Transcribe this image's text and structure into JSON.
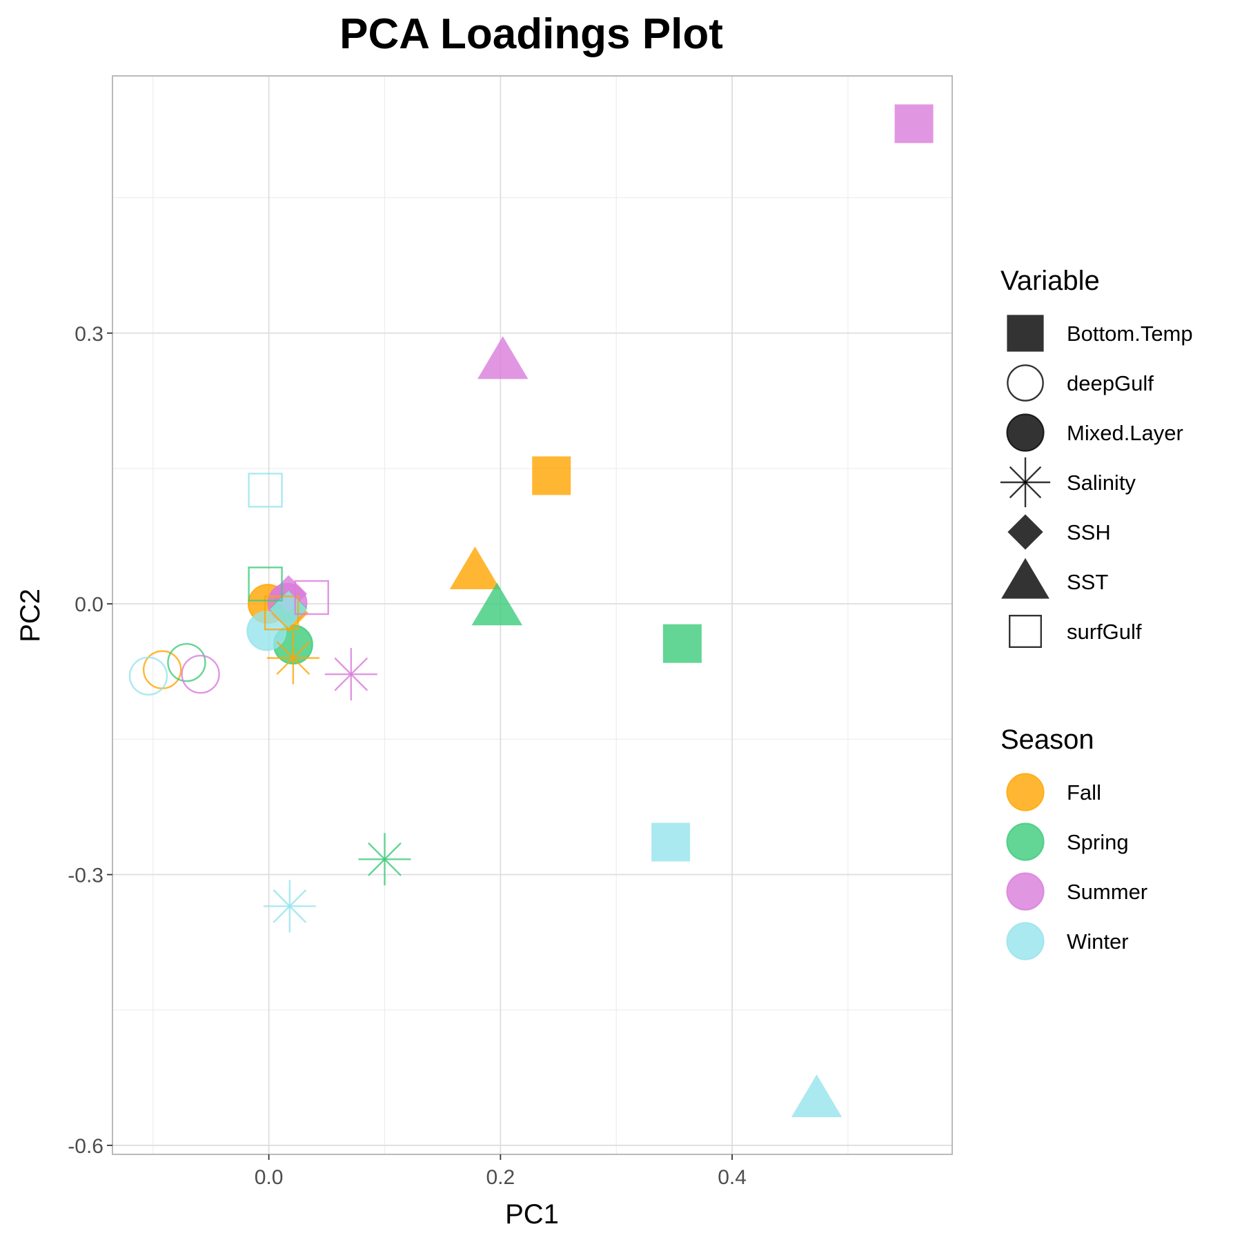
{
  "chart_data": {
    "type": "scatter",
    "title": "PCA Loadings Plot",
    "xlabel": "PC1",
    "ylabel": "PC2",
    "xlim": [
      -0.135,
      0.59
    ],
    "ylim": [
      -0.61,
      0.585
    ],
    "x_ticks": [
      0.0,
      0.2,
      0.4
    ],
    "x_tick_labels": [
      "0.0",
      "0.2",
      "0.4"
    ],
    "y_ticks": [
      0.3,
      0.0,
      -0.3,
      -0.6
    ],
    "y_tick_labels": [
      "0.3",
      "0.0",
      "-0.3",
      "-0.6"
    ],
    "grid": true,
    "legend_placement": "right",
    "legends": {
      "variable": {
        "title": "Variable",
        "entries": [
          {
            "label": "Bottom.Temp",
            "shape": "square-filled"
          },
          {
            "label": "deepGulf",
            "shape": "circle-open"
          },
          {
            "label": "Mixed.Layer",
            "shape": "circle-filled"
          },
          {
            "label": "Salinity",
            "shape": "asterisk"
          },
          {
            "label": "SSH",
            "shape": "diamond-filled"
          },
          {
            "label": "SST",
            "shape": "triangle-filled"
          },
          {
            "label": "surfGulf",
            "shape": "square-open"
          }
        ]
      },
      "season": {
        "title": "Season",
        "entries": [
          {
            "label": "Fall",
            "color": "#FFA500"
          },
          {
            "label": "Spring",
            "color": "#3CCB7A"
          },
          {
            "label": "Summer",
            "color": "#D97CDB"
          },
          {
            "label": "Winter",
            "color": "#96E4EC"
          }
        ]
      }
    },
    "points": [
      {
        "variable": "Bottom.Temp",
        "season": "Fall",
        "x": 0.244,
        "y": 0.142
      },
      {
        "variable": "Bottom.Temp",
        "season": "Spring",
        "x": 0.357,
        "y": -0.044
      },
      {
        "variable": "Bottom.Temp",
        "season": "Summer",
        "x": 0.557,
        "y": 0.532
      },
      {
        "variable": "Bottom.Temp",
        "season": "Winter",
        "x": 0.347,
        "y": -0.264
      },
      {
        "variable": "deepGulf",
        "season": "Fall",
        "x": -0.092,
        "y": -0.073
      },
      {
        "variable": "deepGulf",
        "season": "Spring",
        "x": -0.071,
        "y": -0.065
      },
      {
        "variable": "deepGulf",
        "season": "Summer",
        "x": -0.059,
        "y": -0.078
      },
      {
        "variable": "deepGulf",
        "season": "Winter",
        "x": -0.104,
        "y": -0.08
      },
      {
        "variable": "Mixed.Layer",
        "season": "Fall",
        "x": -0.001,
        "y": 0.0
      },
      {
        "variable": "Mixed.Layer",
        "season": "Spring",
        "x": 0.021,
        "y": -0.045
      },
      {
        "variable": "Mixed.Layer",
        "season": "Summer",
        "x": 0.016,
        "y": 0.001
      },
      {
        "variable": "Mixed.Layer",
        "season": "Winter",
        "x": -0.002,
        "y": -0.03
      },
      {
        "variable": "Salinity",
        "season": "Fall",
        "x": 0.021,
        "y": -0.06
      },
      {
        "variable": "Salinity",
        "season": "Spring",
        "x": 0.1,
        "y": -0.283
      },
      {
        "variable": "Salinity",
        "season": "Summer",
        "x": 0.071,
        "y": -0.078
      },
      {
        "variable": "Salinity",
        "season": "Winter",
        "x": 0.018,
        "y": -0.335
      },
      {
        "variable": "SSH",
        "season": "Fall",
        "x": 0.018,
        "y": -0.01
      },
      {
        "variable": "SSH",
        "season": "Spring",
        "x": 0.017,
        "y": -0.005
      },
      {
        "variable": "SSH",
        "season": "Summer",
        "x": 0.017,
        "y": 0.011
      },
      {
        "variable": "SSH",
        "season": "Winter",
        "x": 0.017,
        "y": -0.006
      },
      {
        "variable": "SST",
        "season": "Fall",
        "x": 0.178,
        "y": 0.036
      },
      {
        "variable": "SST",
        "season": "Spring",
        "x": 0.197,
        "y": -0.004
      },
      {
        "variable": "SST",
        "season": "Summer",
        "x": 0.202,
        "y": 0.269
      },
      {
        "variable": "SST",
        "season": "Winter",
        "x": 0.473,
        "y": -0.549
      },
      {
        "variable": "surfGulf",
        "season": "Fall",
        "x": 0.011,
        "y": -0.01
      },
      {
        "variable": "surfGulf",
        "season": "Spring",
        "x": -0.003,
        "y": 0.022
      },
      {
        "variable": "surfGulf",
        "season": "Summer",
        "x": 0.037,
        "y": 0.007
      },
      {
        "variable": "surfGulf",
        "season": "Winter",
        "x": -0.003,
        "y": 0.126
      }
    ]
  }
}
